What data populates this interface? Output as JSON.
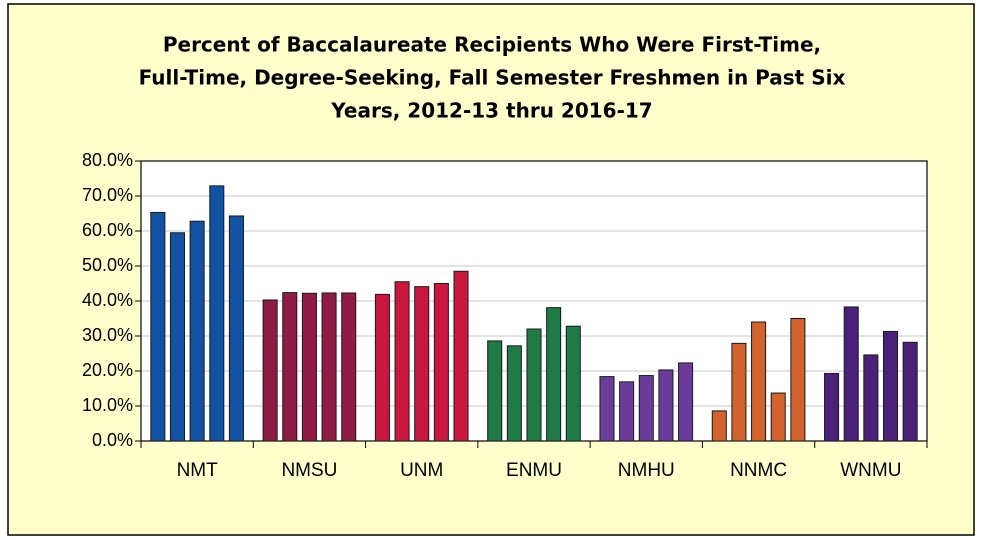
{
  "chart_data": {
    "type": "bar",
    "title": [
      "Percent of Baccalaureate Recipients Who Were First-Time,",
      "Full-Time, Degree-Seeking, Fall Semester Freshmen in Past Six",
      "Years, 2012-13 thru 2016-17"
    ],
    "categories": [
      "NMT",
      "NMSU",
      "UNM",
      "ENMU",
      "NMHU",
      "NNMC",
      "WNMU"
    ],
    "category_colors": [
      "#1152a3",
      "#8e1c45",
      "#c9173d",
      "#1f7a45",
      "#6b3c9b",
      "#d2632f",
      "#4b2079"
    ],
    "series": [
      {
        "values": [
          65.3,
          40.3,
          41.9,
          28.6,
          18.4,
          8.6,
          19.3
        ]
      },
      {
        "values": [
          59.5,
          42.4,
          45.5,
          27.2,
          16.9,
          27.9,
          38.3
        ]
      },
      {
        "values": [
          62.8,
          42.2,
          44.1,
          32.0,
          18.7,
          34.0,
          24.6
        ]
      },
      {
        "values": [
          72.9,
          42.3,
          45.0,
          38.1,
          20.3,
          13.7,
          31.3
        ]
      },
      {
        "values": [
          64.3,
          42.3,
          48.5,
          32.8,
          22.3,
          35.0,
          28.2
        ]
      }
    ],
    "ylim": [
      0,
      80
    ],
    "yticks": [
      {
        "value": 0,
        "label": "0.0%"
      },
      {
        "value": 10,
        "label": "10.0%"
      },
      {
        "value": 20,
        "label": "20.0%"
      },
      {
        "value": 30,
        "label": "30.0%"
      },
      {
        "value": 40,
        "label": "40.0%"
      },
      {
        "value": 50,
        "label": "50.0%"
      },
      {
        "value": 60,
        "label": "60.0%"
      },
      {
        "value": 70,
        "label": "70.0%"
      },
      {
        "value": 80,
        "label": "80.0%"
      }
    ],
    "grid": true
  }
}
